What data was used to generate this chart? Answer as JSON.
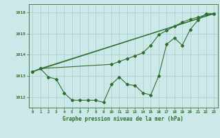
{
  "title": "Graphe pression niveau de la mer (hPa)",
  "bg_color": "#cce8e8",
  "grid_color": "#aacccc",
  "line_color": "#2d6e2d",
  "xlim": [
    -0.5,
    23.5
  ],
  "ylim": [
    1011.5,
    1016.4
  ],
  "yticks": [
    1012,
    1013,
    1014,
    1015,
    1016
  ],
  "xticks": [
    0,
    1,
    2,
    3,
    4,
    5,
    6,
    7,
    8,
    9,
    10,
    11,
    12,
    13,
    14,
    15,
    16,
    17,
    18,
    19,
    20,
    21,
    22,
    23
  ],
  "series1_x": [
    0,
    1,
    2,
    3,
    4,
    5,
    6,
    7,
    8,
    9,
    10,
    11,
    12,
    13,
    14,
    15,
    16,
    17,
    18,
    19,
    20,
    21,
    22,
    23
  ],
  "series1_y": [
    1013.2,
    1013.35,
    1012.95,
    1012.85,
    1012.2,
    1011.85,
    1011.85,
    1011.85,
    1011.85,
    1011.75,
    1012.6,
    1012.95,
    1012.6,
    1012.55,
    1012.2,
    1012.1,
    1013.0,
    1014.5,
    1014.8,
    1014.45,
    1015.2,
    1015.65,
    1015.95,
    1015.95
  ],
  "series2_x": [
    0,
    1,
    10,
    11,
    12,
    13,
    14,
    15,
    16,
    17,
    18,
    19,
    20,
    21,
    22,
    23
  ],
  "series2_y": [
    1013.2,
    1013.35,
    1013.55,
    1013.68,
    1013.82,
    1013.95,
    1014.1,
    1014.45,
    1014.95,
    1015.15,
    1015.35,
    1015.55,
    1015.68,
    1015.78,
    1015.9,
    1015.95
  ],
  "line3_x": [
    0,
    23
  ],
  "line3_y": [
    1013.2,
    1015.95
  ],
  "line4_x": [
    1,
    23
  ],
  "line4_y": [
    1013.35,
    1015.95
  ]
}
